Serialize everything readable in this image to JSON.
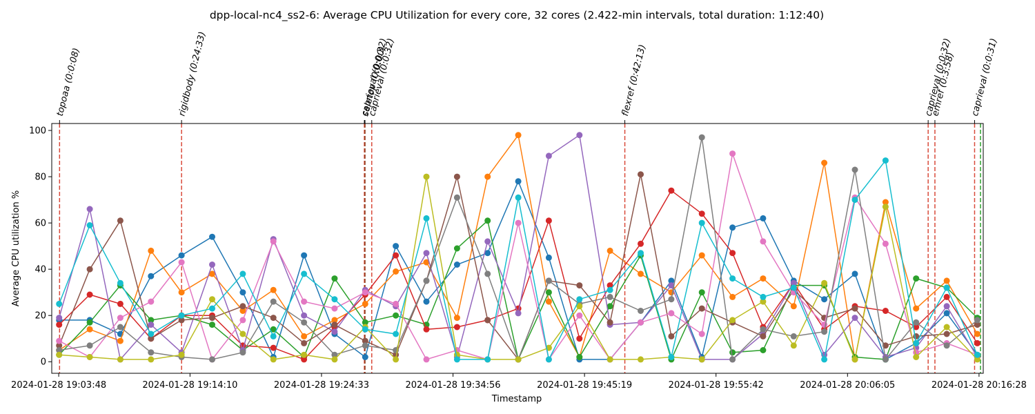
{
  "chart_data": {
    "type": "line",
    "title": "dpp-local-nc4_ss2-6: Average CPU Utilization for every core, 32 cores (2.422-min intervals, total duration: 1:12:40)",
    "xlabel": "Timestamp",
    "ylabel": "Average CPU utilization %",
    "x_tick_labels": [
      "2024-01-28 19:03:48",
      "2024-01-28 19:14:10",
      "2024-01-28 19:24:33",
      "2024-01-28 19:34:56",
      "2024-01-28 19:45:19",
      "2024-01-28 19:55:42",
      "2024-01-28 20:06:05",
      "2024-01-28 20:16:28"
    ],
    "y_ticks": [
      0,
      20,
      40,
      60,
      80,
      100
    ],
    "xlim": [
      "2024-01-28 19:03:15",
      "2024-01-28 20:16:48"
    ],
    "ylim": [
      -5,
      103
    ],
    "grid": false,
    "x": [
      "19:03:50",
      "19:06:15",
      "19:08:40",
      "19:11:05",
      "19:13:30",
      "19:15:55",
      "19:18:20",
      "19:20:45",
      "19:23:10",
      "19:25:35",
      "19:28:00",
      "19:30:25",
      "19:32:50",
      "19:35:15",
      "19:37:40",
      "19:40:05",
      "19:42:30",
      "19:44:55",
      "19:47:20",
      "19:49:45",
      "19:52:10",
      "19:54:35",
      "19:57:00",
      "19:59:25",
      "20:01:50",
      "20:04:15",
      "20:06:40",
      "20:09:05",
      "20:11:30",
      "20:13:55",
      "20:16:20"
    ],
    "series": [
      {
        "color": "#1f77b4",
        "values": [
          18,
          18,
          12,
          37,
          46,
          54,
          30,
          2,
          46,
          12,
          2,
          50,
          26,
          42,
          47,
          78,
          45,
          1,
          1,
          17,
          35,
          2,
          58,
          62,
          35,
          27,
          38,
          1,
          8,
          21,
          3
        ]
      },
      {
        "color": "#ff7f0e",
        "values": [
          5,
          14,
          9,
          48,
          30,
          38,
          22,
          31,
          11,
          18,
          25,
          39,
          43,
          19,
          80,
          98,
          26,
          2,
          48,
          38,
          30,
          46,
          28,
          36,
          24,
          86,
          1,
          69,
          23,
          35,
          12
        ]
      },
      {
        "color": "#2ca02c",
        "values": [
          3,
          17,
          33,
          18,
          20,
          16,
          5,
          14,
          2,
          36,
          17,
          20,
          16,
          49,
          61,
          1,
          30,
          2,
          24,
          46,
          1,
          30,
          4,
          5,
          33,
          33,
          2,
          1,
          36,
          32,
          19
        ]
      },
      {
        "color": "#d62728",
        "values": [
          16,
          29,
          25,
          10,
          20,
          20,
          7,
          6,
          1,
          15,
          29,
          46,
          14,
          15,
          18,
          23,
          61,
          10,
          33,
          51,
          74,
          64,
          47,
          15,
          34,
          14,
          24,
          22,
          15,
          28,
          8
        ]
      },
      {
        "color": "#9467bd",
        "values": [
          19,
          66,
          1,
          16,
          4,
          42,
          5,
          53,
          20,
          13,
          31,
          24,
          47,
          2,
          52,
          21,
          89,
          98,
          16,
          17,
          33,
          1,
          1,
          12,
          34,
          3,
          19,
          2,
          6,
          24,
          2
        ]
      },
      {
        "color": "#8c564b",
        "values": [
          7,
          40,
          61,
          10,
          18,
          19,
          24,
          19,
          8,
          16,
          9,
          3,
          35,
          80,
          18,
          1,
          35,
          33,
          17,
          81,
          11,
          23,
          17,
          11,
          31,
          19,
          23,
          7,
          11,
          12,
          16
        ]
      },
      {
        "color": "#e377c2",
        "values": [
          9,
          2,
          19,
          26,
          43,
          1,
          18,
          52,
          26,
          23,
          30,
          25,
          1,
          5,
          1,
          60,
          1,
          20,
          1,
          17,
          21,
          12,
          90,
          52,
          30,
          16,
          71,
          51,
          4,
          8,
          3
        ]
      },
      {
        "color": "#7f7f7f",
        "values": [
          5,
          7,
          15,
          4,
          2,
          1,
          4,
          26,
          17,
          3,
          7,
          5,
          35,
          71,
          38,
          1,
          35,
          25,
          28,
          22,
          27,
          97,
          1,
          14,
          11,
          13,
          83,
          1,
          17,
          7,
          18
        ]
      },
      {
        "color": "#bcbd22",
        "values": [
          3,
          2,
          1,
          1,
          3,
          27,
          12,
          1,
          3,
          1,
          15,
          1,
          80,
          3,
          1,
          1,
          6,
          24,
          1,
          1,
          2,
          1,
          18,
          26,
          7,
          34,
          1,
          67,
          2,
          15,
          1
        ]
      },
      {
        "color": "#17becf",
        "values": [
          25,
          59,
          34,
          12,
          20,
          23,
          38,
          11,
          38,
          27,
          14,
          12,
          62,
          1,
          1,
          71,
          1,
          27,
          31,
          47,
          2,
          60,
          36,
          28,
          32,
          1,
          70,
          87,
          8,
          32,
          3
        ]
      }
    ],
    "event_markers": [
      {
        "label": "topoaa (0:0:08)",
        "time": "19:03:52",
        "color": "#d94a3a"
      },
      {
        "label": "rigidbody (0:24:33)",
        "time": "19:13:30",
        "color": "#d94a3a"
      },
      {
        "label": "caprieval (0:0:32)",
        "time": "19:27:56",
        "color": "#d94a3a"
      },
      {
        "label": "seletop (0:0:00)",
        "time": "19:27:59",
        "color": "#8b3a1a"
      },
      {
        "label": "caprieval (0:0:32)",
        "time": "19:28:31",
        "color": "#d94a3a"
      },
      {
        "label": "flexref (0:42:13)",
        "time": "19:48:30",
        "color": "#d94a3a"
      },
      {
        "label": "caprieval (0:0:32)",
        "time": "20:12:27",
        "color": "#d94a3a"
      },
      {
        "label": "emref (0:3:58)",
        "time": "20:12:59",
        "color": "#d94a3a"
      },
      {
        "label": "caprieval (0:0:31)",
        "time": "20:16:07",
        "color": "#d94a3a"
      }
    ],
    "end_marker": {
      "time": "20:16:35",
      "color": "#2ca02c"
    }
  }
}
